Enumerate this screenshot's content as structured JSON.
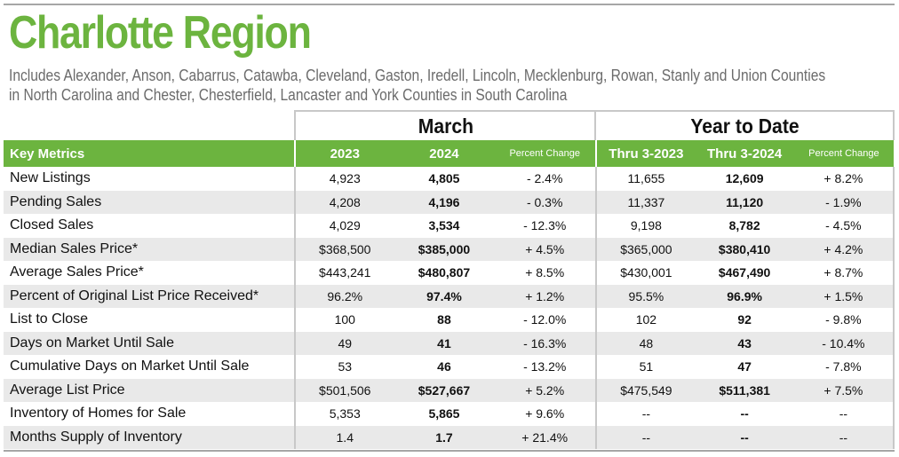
{
  "header": {
    "title": "Charlotte Region",
    "subtitle_line1": "Includes Alexander, Anson, Cabarrus, Catawba, Cleveland, Gaston, Iredell, Lincoln, Mecklenburg, Rowan, Stanly and Union Counties",
    "subtitle_line2": "in North Carolina and Chester, Chesterfield, Lancaster and York Counties in South Carolina"
  },
  "colors": {
    "accent": "#6cb43f",
    "subtitle": "#6b6b6b",
    "row_alt": "#e9e9e9"
  },
  "groups": {
    "march": "March",
    "ytd": "Year to Date"
  },
  "columns": {
    "metric": "Key Metrics",
    "m_prev": "2023",
    "m_curr": "2024",
    "m_pct": "Percent Change",
    "y_prev": "Thru 3-2023",
    "y_curr": "Thru 3-2024",
    "y_pct": "Percent Change"
  },
  "rows": [
    {
      "metric": "New Listings",
      "m_prev": "4,923",
      "m_curr": "4,805",
      "m_pct": "- 2.4%",
      "y_prev": "11,655",
      "y_curr": "12,609",
      "y_pct": "+ 8.2%"
    },
    {
      "metric": "Pending Sales",
      "m_prev": "4,208",
      "m_curr": "4,196",
      "m_pct": "- 0.3%",
      "y_prev": "11,337",
      "y_curr": "11,120",
      "y_pct": "- 1.9%"
    },
    {
      "metric": "Closed Sales",
      "m_prev": "4,029",
      "m_curr": "3,534",
      "m_pct": "- 12.3%",
      "y_prev": "9,198",
      "y_curr": "8,782",
      "y_pct": "- 4.5%"
    },
    {
      "metric": "Median Sales Price*",
      "m_prev": "$368,500",
      "m_curr": "$385,000",
      "m_pct": "+ 4.5%",
      "y_prev": "$365,000",
      "y_curr": "$380,410",
      "y_pct": "+ 4.2%"
    },
    {
      "metric": "Average Sales Price*",
      "m_prev": "$443,241",
      "m_curr": "$480,807",
      "m_pct": "+ 8.5%",
      "y_prev": "$430,001",
      "y_curr": "$467,490",
      "y_pct": "+ 8.7%"
    },
    {
      "metric": "Percent of Original List Price Received*",
      "m_prev": "96.2%",
      "m_curr": "97.4%",
      "m_pct": "+ 1.2%",
      "y_prev": "95.5%",
      "y_curr": "96.9%",
      "y_pct": "+ 1.5%"
    },
    {
      "metric": "List to Close",
      "m_prev": "100",
      "m_curr": "88",
      "m_pct": "- 12.0%",
      "y_prev": "102",
      "y_curr": "92",
      "y_pct": "- 9.8%"
    },
    {
      "metric": "Days on Market Until Sale",
      "m_prev": "49",
      "m_curr": "41",
      "m_pct": "- 16.3%",
      "y_prev": "48",
      "y_curr": "43",
      "y_pct": "- 10.4%"
    },
    {
      "metric": "Cumulative Days on Market Until Sale",
      "m_prev": "53",
      "m_curr": "46",
      "m_pct": "- 13.2%",
      "y_prev": "51",
      "y_curr": "47",
      "y_pct": "- 7.8%"
    },
    {
      "metric": "Average List Price",
      "m_prev": "$501,506",
      "m_curr": "$527,667",
      "m_pct": "+ 5.2%",
      "y_prev": "$475,549",
      "y_curr": "$511,381",
      "y_pct": "+ 7.5%"
    },
    {
      "metric": "Inventory of Homes for Sale",
      "m_prev": "5,353",
      "m_curr": "5,865",
      "m_pct": "+ 9.6%",
      "y_prev": "--",
      "y_curr": "--",
      "y_pct": "--"
    },
    {
      "metric": "Months Supply of Inventory",
      "m_prev": "1.4",
      "m_curr": "1.7",
      "m_pct": "+ 21.4%",
      "y_prev": "--",
      "y_curr": "--",
      "y_pct": "--"
    }
  ]
}
